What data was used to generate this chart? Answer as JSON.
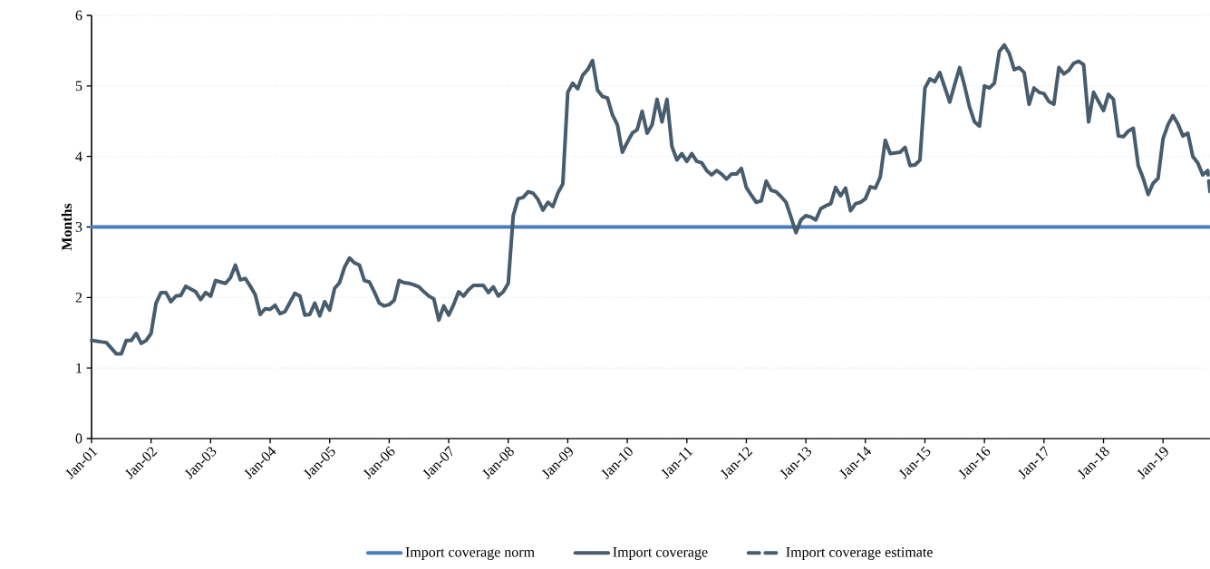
{
  "chart_data": {
    "type": "line",
    "ylabel": "Months",
    "x": [
      "2001-01",
      "2001-02",
      "2001-03",
      "2001-04",
      "2001-05",
      "2001-06",
      "2001-07",
      "2001-08",
      "2001-09",
      "2001-10",
      "2001-11",
      "2001-12",
      "2002-01",
      "2002-02",
      "2002-03",
      "2002-04",
      "2002-05",
      "2002-06",
      "2002-07",
      "2002-08",
      "2002-09",
      "2002-10",
      "2002-11",
      "2002-12",
      "2003-01",
      "2003-02",
      "2003-03",
      "2003-04",
      "2003-05",
      "2003-06",
      "2003-07",
      "2003-08",
      "2003-09",
      "2003-10",
      "2003-11",
      "2003-12",
      "2004-01",
      "2004-02",
      "2004-03",
      "2004-04",
      "2004-05",
      "2004-06",
      "2004-07",
      "2004-08",
      "2004-09",
      "2004-10",
      "2004-11",
      "2004-12",
      "2005-01",
      "2005-02",
      "2005-03",
      "2005-04",
      "2005-05",
      "2005-06",
      "2005-07",
      "2005-08",
      "2005-09",
      "2005-10",
      "2005-11",
      "2005-12",
      "2006-01",
      "2006-02",
      "2006-03",
      "2006-04",
      "2006-05",
      "2006-06",
      "2006-07",
      "2006-08",
      "2006-09",
      "2006-10",
      "2006-11",
      "2006-12",
      "2007-01",
      "2007-02",
      "2007-03",
      "2007-04",
      "2007-05",
      "2007-06",
      "2007-07",
      "2007-08",
      "2007-09",
      "2007-10",
      "2007-11",
      "2007-12",
      "2008-01",
      "2008-02",
      "2008-03",
      "2008-04",
      "2008-05",
      "2008-06",
      "2008-07",
      "2008-08",
      "2008-09",
      "2008-10",
      "2008-11",
      "2008-12",
      "2009-01",
      "2009-02",
      "2009-03",
      "2009-04",
      "2009-05",
      "2009-06",
      "2009-07",
      "2009-08",
      "2009-09",
      "2009-10",
      "2009-11",
      "2009-12",
      "2010-01",
      "2010-02",
      "2010-03",
      "2010-04",
      "2010-05",
      "2010-06",
      "2010-07",
      "2010-08",
      "2010-09",
      "2010-10",
      "2010-11",
      "2010-12",
      "2011-01",
      "2011-02",
      "2011-03",
      "2011-04",
      "2011-05",
      "2011-06",
      "2011-07",
      "2011-08",
      "2011-09",
      "2011-10",
      "2011-11",
      "2011-12",
      "2012-01",
      "2012-02",
      "2012-03",
      "2012-04",
      "2012-05",
      "2012-06",
      "2012-07",
      "2012-08",
      "2012-09",
      "2012-10",
      "2012-11",
      "2012-12",
      "2013-01",
      "2013-02",
      "2013-03",
      "2013-04",
      "2013-05",
      "2013-06",
      "2013-07",
      "2013-08",
      "2013-09",
      "2013-10",
      "2013-11",
      "2013-12",
      "2014-01",
      "2014-02",
      "2014-03",
      "2014-04",
      "2014-05",
      "2014-06",
      "2014-07",
      "2014-08",
      "2014-09",
      "2014-10",
      "2014-11",
      "2014-12",
      "2015-01",
      "2015-02",
      "2015-03",
      "2015-04",
      "2015-05",
      "2015-06",
      "2015-07",
      "2015-08",
      "2015-09",
      "2015-10",
      "2015-11",
      "2015-12",
      "2016-01",
      "2016-02",
      "2016-03",
      "2016-04",
      "2016-05",
      "2016-06",
      "2016-07",
      "2016-08",
      "2016-09",
      "2016-10",
      "2016-11",
      "2016-12",
      "2017-01",
      "2017-02",
      "2017-03",
      "2017-04",
      "2017-05",
      "2017-06",
      "2017-07",
      "2017-08",
      "2017-09",
      "2017-10",
      "2017-11",
      "2017-12",
      "2018-01",
      "2018-02",
      "2018-03",
      "2018-04",
      "2018-05",
      "2018-06",
      "2018-07",
      "2018-08",
      "2018-09",
      "2018-10",
      "2018-11",
      "2018-12",
      "2019-01",
      "2019-02",
      "2019-03",
      "2019-04",
      "2019-05",
      "2019-06",
      "2019-07",
      "2019-08",
      "2019-09"
    ],
    "series": [
      {
        "name": "Import coverage norm",
        "color": "#4a7ebb",
        "x": [
          "2001-01",
          "2019-10-15"
        ],
        "values": [
          3,
          3
        ]
      },
      {
        "name": "Import coverage",
        "color": "#475c6d",
        "values": [
          1.39,
          1.38,
          1.37,
          1.36,
          1.28,
          1.2,
          1.2,
          1.39,
          1.39,
          1.49,
          1.35,
          1.39,
          1.49,
          1.92,
          2.07,
          2.07,
          1.94,
          2.02,
          2.03,
          2.16,
          2.12,
          2.08,
          1.97,
          2.07,
          2.02,
          2.24,
          2.22,
          2.2,
          2.28,
          2.46,
          2.25,
          2.27,
          2.16,
          2.04,
          1.76,
          1.84,
          1.83,
          1.89,
          1.77,
          1.8,
          1.93,
          2.06,
          2.02,
          1.75,
          1.76,
          1.92,
          1.74,
          1.94,
          1.82,
          2.13,
          2.21,
          2.43,
          2.56,
          2.49,
          2.46,
          2.24,
          2.22,
          2.08,
          1.92,
          1.88,
          1.9,
          1.96,
          2.24,
          2.21,
          2.2,
          2.18,
          2.15,
          2.08,
          2.02,
          1.98,
          1.68,
          1.88,
          1.75,
          1.9,
          2.08,
          2.02,
          2.11,
          2.17,
          2.17,
          2.17,
          2.07,
          2.15,
          2.02,
          2.08,
          2.2,
          3.16,
          3.4,
          3.42,
          3.5,
          3.48,
          3.39,
          3.24,
          3.35,
          3.29,
          3.48,
          3.61,
          4.91,
          5.04,
          4.96,
          5.15,
          5.23,
          5.36,
          4.94,
          4.85,
          4.83,
          4.59,
          4.45,
          4.06,
          4.2,
          4.33,
          4.38,
          4.64,
          4.33,
          4.45,
          4.81,
          4.49,
          4.81,
          4.14,
          3.95,
          4.04,
          3.93,
          4.04,
          3.93,
          3.91,
          3.8,
          3.74,
          3.8,
          3.75,
          3.68,
          3.75,
          3.75,
          3.83,
          3.56,
          3.45,
          3.35,
          3.37,
          3.65,
          3.52,
          3.5,
          3.43,
          3.35,
          3.14,
          2.92,
          3.1,
          3.16,
          3.14,
          3.1,
          3.26,
          3.3,
          3.33,
          3.56,
          3.44,
          3.55,
          3.23,
          3.33,
          3.35,
          3.4,
          3.57,
          3.55,
          3.71,
          4.23,
          4.04,
          4.05,
          4.06,
          4.13,
          3.87,
          3.88,
          3.95,
          4.97,
          5.1,
          5.06,
          5.19,
          4.98,
          4.77,
          5.02,
          5.26,
          5.0,
          4.7,
          4.49,
          4.43,
          5.0,
          4.97,
          5.04,
          5.49,
          5.58,
          5.46,
          5.23,
          5.26,
          5.19,
          4.74,
          4.97,
          4.91,
          4.89,
          4.78,
          4.74,
          5.26,
          5.17,
          5.22,
          5.32,
          5.35,
          5.3,
          4.49,
          4.91,
          4.78,
          4.65,
          4.88,
          4.81,
          4.29,
          4.28,
          4.36,
          4.4,
          3.87,
          3.69,
          3.46,
          3.62,
          3.69,
          4.25,
          4.45,
          4.58,
          4.46,
          4.29,
          4.33,
          4.0,
          3.91,
          3.74
        ]
      },
      {
        "name": "Import coverage estimate",
        "color": "#475c6d",
        "line_style": "dashed",
        "x": [
          "2019-09",
          "2019-10",
          "2019-10-15"
        ],
        "values": [
          3.74,
          3.8,
          3.5
        ]
      }
    ],
    "xlim": [
      "2001-01",
      "2019-10-15"
    ],
    "xticks": [
      {
        "value": "2001-01",
        "label": "Jan-01"
      },
      {
        "value": "2002-01",
        "label": "Jan-02"
      },
      {
        "value": "2003-01",
        "label": "Jan-03"
      },
      {
        "value": "2004-01",
        "label": "Jan-04"
      },
      {
        "value": "2005-01",
        "label": "Jan-05"
      },
      {
        "value": "2006-01",
        "label": "Jan-06"
      },
      {
        "value": "2007-01",
        "label": "Jan-07"
      },
      {
        "value": "2008-01",
        "label": "Jan-08"
      },
      {
        "value": "2009-01",
        "label": "Jan-09"
      },
      {
        "value": "2010-01",
        "label": "Jan-10"
      },
      {
        "value": "2011-01",
        "label": "Jan-11"
      },
      {
        "value": "2012-01",
        "label": "Jan-12"
      },
      {
        "value": "2013-01",
        "label": "Jan-13"
      },
      {
        "value": "2014-01",
        "label": "Jan-14"
      },
      {
        "value": "2015-01",
        "label": "Jan-15"
      },
      {
        "value": "2016-01",
        "label": "Jan-16"
      },
      {
        "value": "2017-01",
        "label": "Jan-17"
      },
      {
        "value": "2018-01",
        "label": "Jan-18"
      },
      {
        "value": "2019-01",
        "label": "Jan-19"
      }
    ],
    "ylim": [
      0,
      6
    ],
    "yticks": [
      0,
      1,
      2,
      3,
      4,
      5,
      6
    ],
    "grid": "y",
    "legend": "bottom",
    "marker": "none",
    "line_style": "solid"
  }
}
